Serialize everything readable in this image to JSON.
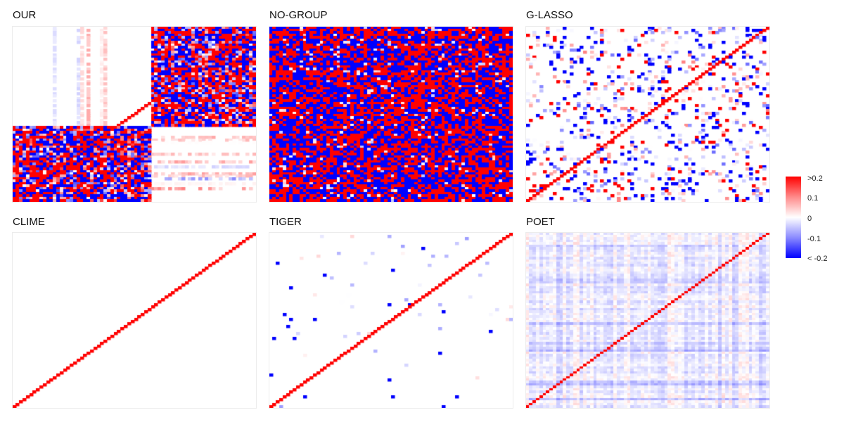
{
  "chart_data": [
    {
      "type": "heatmap",
      "title": "OUR",
      "pattern": "block",
      "size": 72
    },
    {
      "type": "heatmap",
      "title": "NO-GROUP",
      "pattern": "dense",
      "size": 72
    },
    {
      "type": "heatmap",
      "title": "G-LASSO",
      "pattern": "sparse",
      "size": 72
    },
    {
      "type": "heatmap",
      "title": "CLIME",
      "pattern": "diagonal",
      "size": 72
    },
    {
      "type": "heatmap",
      "title": "TIGER",
      "pattern": "tiger",
      "size": 72
    },
    {
      "type": "heatmap",
      "title": "POET",
      "pattern": "poet",
      "size": 72
    }
  ],
  "legend": {
    "ticks": [
      ">0.2",
      "0.1",
      "0",
      "-0.1",
      "< -0.2"
    ],
    "range": [
      -0.2,
      0.2
    ],
    "colors": {
      "high": "#ff0000",
      "mid": "#ffffff",
      "low": "#0000ff"
    }
  }
}
